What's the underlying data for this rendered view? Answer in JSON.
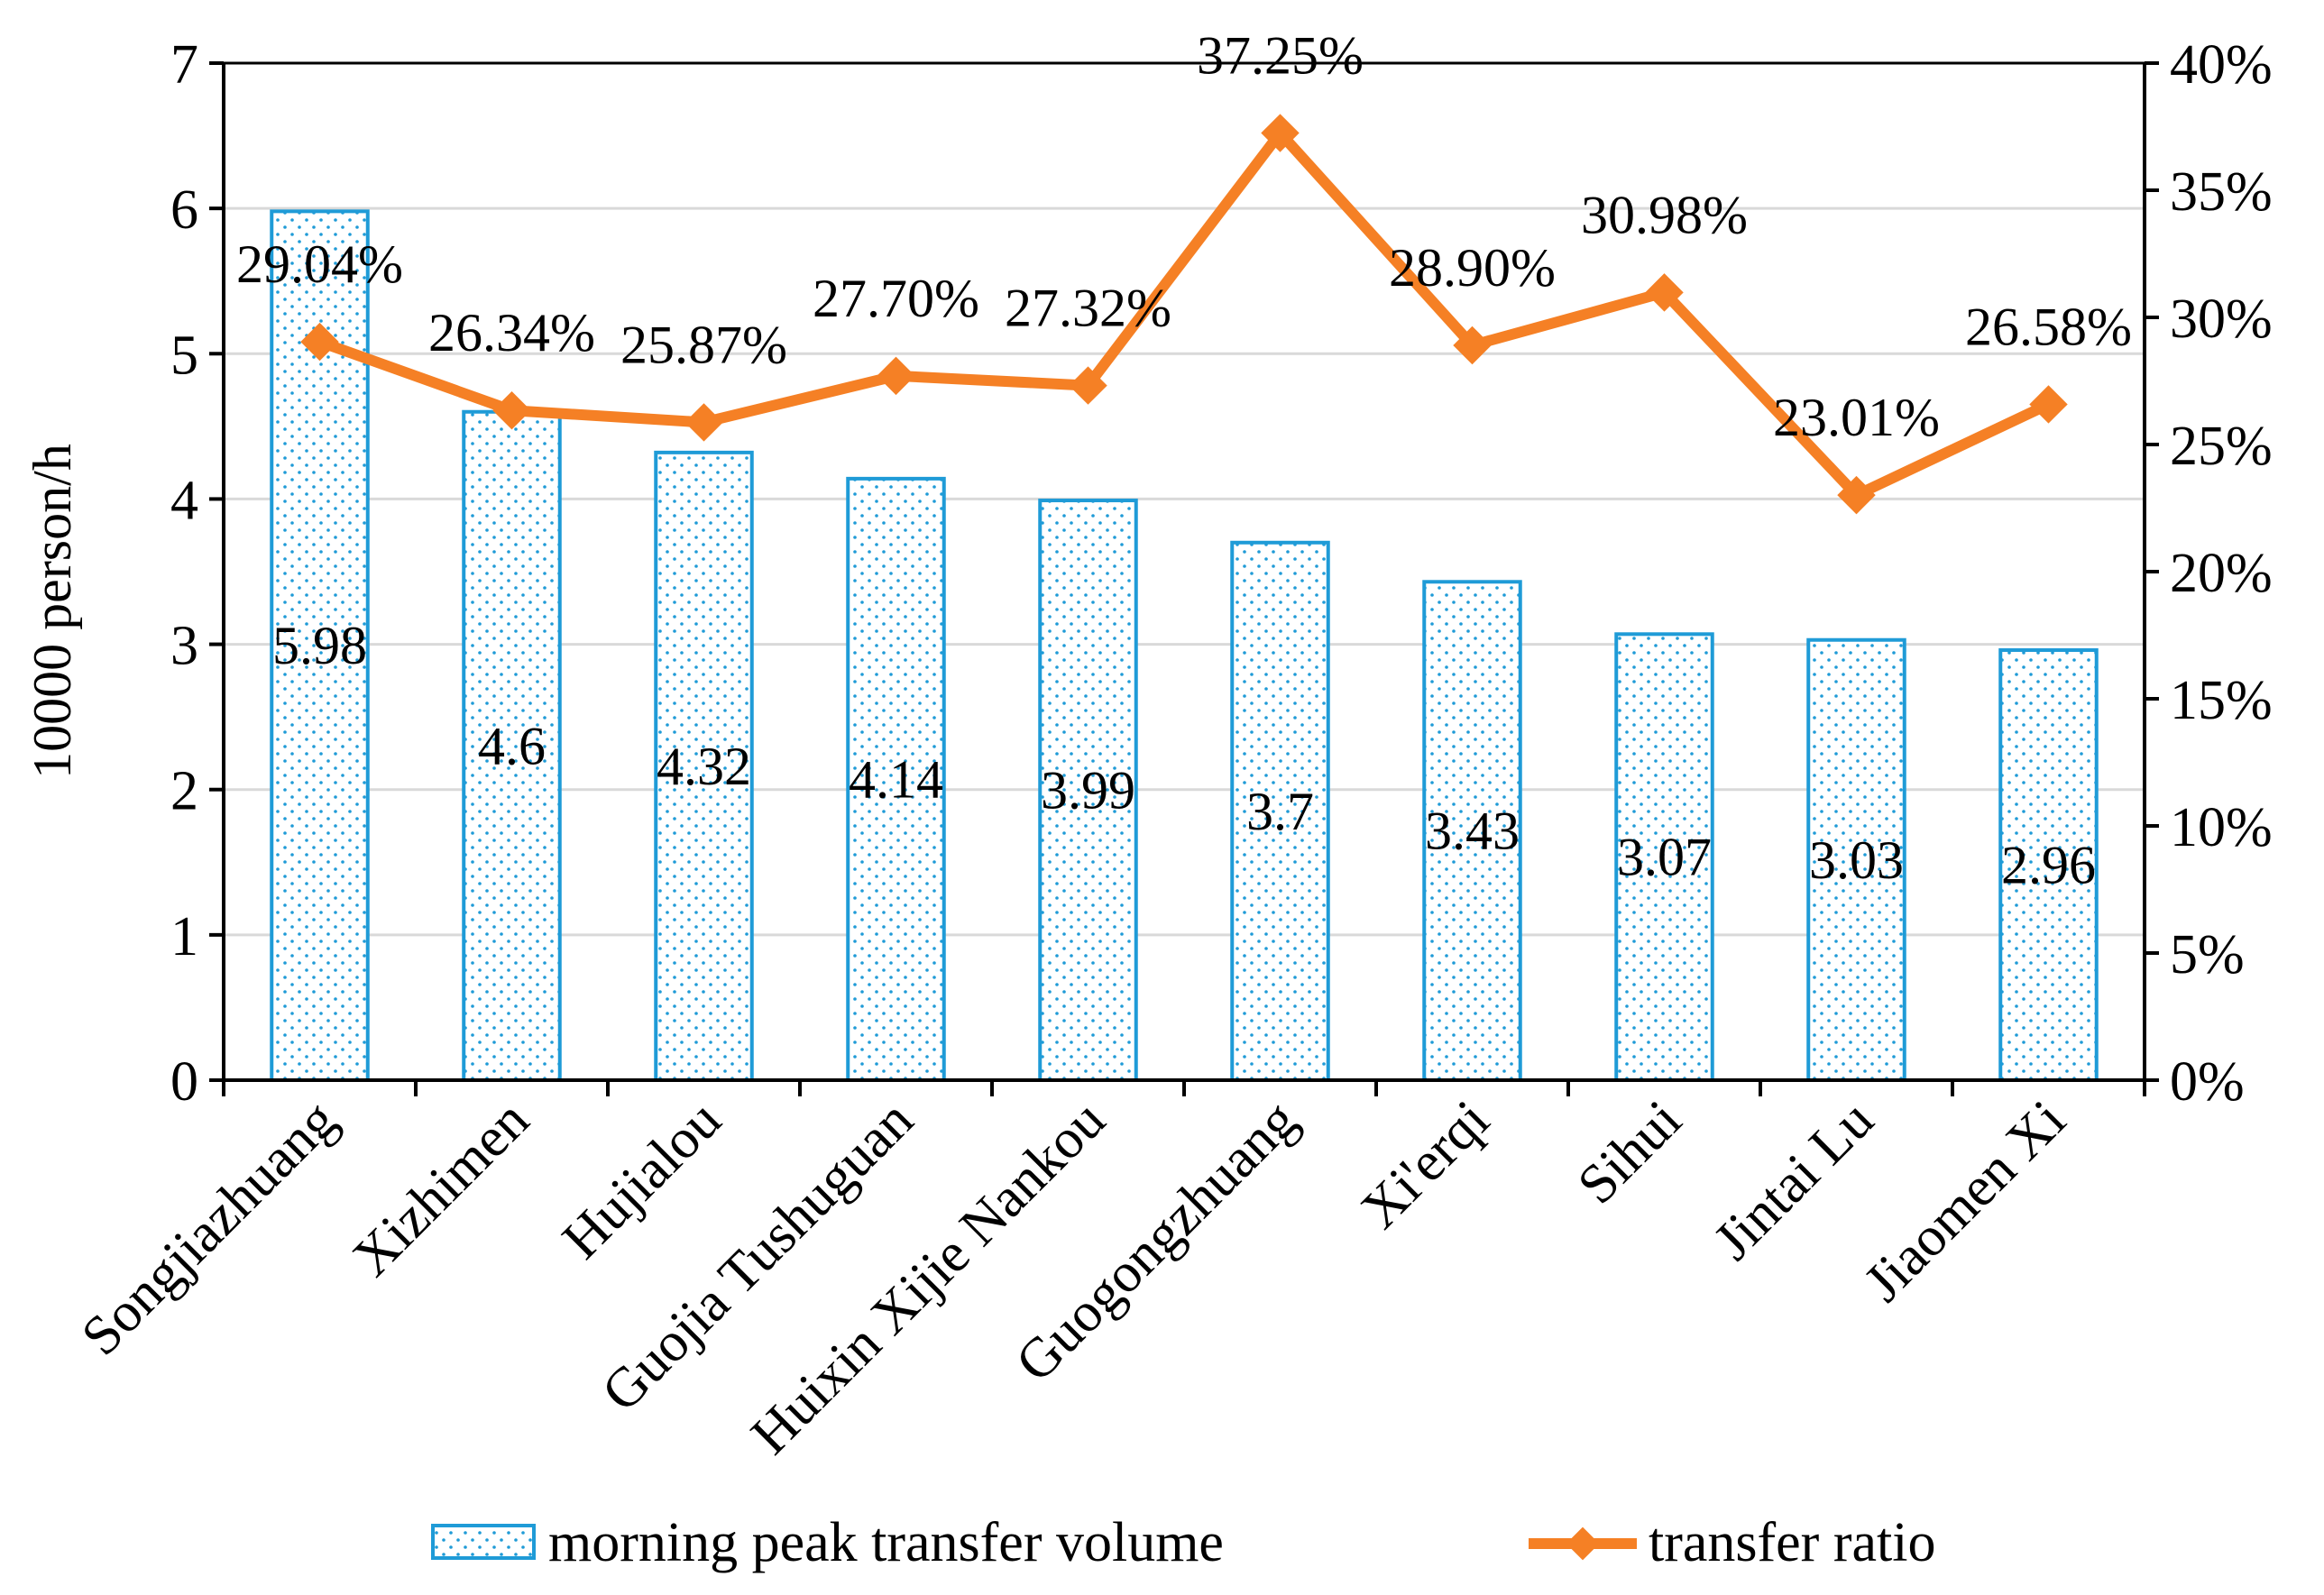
{
  "chart_data": {
    "type": "bar",
    "categories": [
      "Songjiazhuang",
      "Xizhimen",
      "Hujialou",
      "Guojia Tushuguan",
      "Huixin Xijie Nankou",
      "Guogongzhuang",
      "Xi'erqi",
      "Sihui",
      "Jintai Lu",
      "Jiaomen Xi"
    ],
    "series": [
      {
        "name": "morning peak transfer volume",
        "type": "bar",
        "axis": "left",
        "values": [
          5.98,
          4.6,
          4.32,
          4.14,
          3.99,
          3.7,
          3.43,
          3.07,
          3.03,
          2.96
        ],
        "labels": [
          "5.98",
          "4.6",
          "4.32",
          "4.14",
          "3.99",
          "3.7",
          "3.43",
          "3.07",
          "3.03",
          "2.96"
        ],
        "color": "#1f9bd7"
      },
      {
        "name": "transfer ratio",
        "type": "line",
        "axis": "right",
        "values": [
          29.04,
          26.34,
          25.87,
          27.7,
          27.32,
          37.25,
          28.9,
          30.98,
          23.01,
          26.58
        ],
        "labels": [
          "29.04%",
          "26.34%",
          "25.87%",
          "27.70%",
          "27.32%",
          "37.25%",
          "28.90%",
          "30.98%",
          "23.01%",
          "26.58%"
        ],
        "color": "#f58025"
      }
    ],
    "ylabel": "10000 person/h",
    "ylim": [
      0,
      7
    ],
    "yticks": [
      "0",
      "1",
      "2",
      "3",
      "4",
      "5",
      "6",
      "7"
    ],
    "y2lim": [
      0,
      40
    ],
    "y2ticks": [
      "0%",
      "5%",
      "10%",
      "15%",
      "20%",
      "25%",
      "30%",
      "35%",
      "40%"
    ],
    "grid": true,
    "legend": "bottom"
  }
}
